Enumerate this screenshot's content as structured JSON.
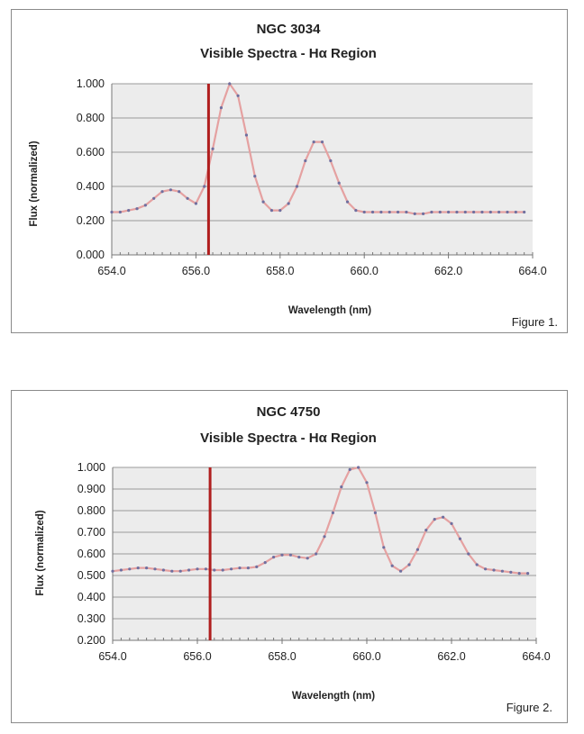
{
  "chart_data": [
    {
      "type": "line",
      "title": "NGC 3034",
      "subtitle": "Visible Spectra - Hα Region",
      "xlabel": "Wavelength (nm)",
      "ylabel": "Flux (normalized)",
      "figure_label": "Figure 1.",
      "xlim": [
        654.0,
        664.0
      ],
      "ylim": [
        0.0,
        1.0
      ],
      "xticks": [
        "654.0",
        "656.0",
        "658.0",
        "660.0",
        "662.0",
        "664.0"
      ],
      "yticks": [
        "0.000",
        "0.200",
        "0.400",
        "0.600",
        "0.800",
        "1.000"
      ],
      "marker_line_x": 656.3,
      "colors": {
        "line": "#e5a1a1",
        "marker": "#6f6f9f",
        "vline": "#b01e1e",
        "plot_bg": "#ececec",
        "grid": "#9a9a9a"
      },
      "series": [
        {
          "name": "NGC 3034",
          "x": [
            654.0,
            654.2,
            654.4,
            654.6,
            654.8,
            655.0,
            655.2,
            655.4,
            655.6,
            655.8,
            656.0,
            656.2,
            656.4,
            656.6,
            656.8,
            657.0,
            657.2,
            657.4,
            657.6,
            657.8,
            658.0,
            658.2,
            658.4,
            658.6,
            658.8,
            659.0,
            659.2,
            659.4,
            659.6,
            659.8,
            660.0,
            660.2,
            660.4,
            660.6,
            660.8,
            661.0,
            661.2,
            661.4,
            661.6,
            661.8,
            662.0,
            662.2,
            662.4,
            662.6,
            662.8,
            663.0,
            663.2,
            663.4,
            663.6,
            663.8
          ],
          "values": [
            0.25,
            0.25,
            0.26,
            0.27,
            0.29,
            0.33,
            0.37,
            0.38,
            0.37,
            0.33,
            0.3,
            0.4,
            0.62,
            0.86,
            1.0,
            0.93,
            0.7,
            0.46,
            0.31,
            0.26,
            0.26,
            0.3,
            0.4,
            0.55,
            0.66,
            0.66,
            0.55,
            0.42,
            0.31,
            0.26,
            0.25,
            0.25,
            0.25,
            0.25,
            0.25,
            0.25,
            0.24,
            0.24,
            0.25,
            0.25,
            0.25,
            0.25,
            0.25,
            0.25,
            0.25,
            0.25,
            0.25,
            0.25,
            0.25,
            0.25
          ]
        }
      ]
    },
    {
      "type": "line",
      "title": "NGC 4750",
      "subtitle": "Visible Spectra - Hα Region",
      "xlabel": "Wavelength (nm)",
      "ylabel": "Flux (normalized)",
      "figure_label": "Figure 2.",
      "xlim": [
        654.0,
        664.0
      ],
      "ylim": [
        0.2,
        1.0
      ],
      "xticks": [
        "654.0",
        "656.0",
        "658.0",
        "660.0",
        "662.0",
        "664.0"
      ],
      "yticks": [
        "0.200",
        "0.300",
        "0.400",
        "0.500",
        "0.600",
        "0.700",
        "0.800",
        "0.900",
        "1.000"
      ],
      "marker_line_x": 656.3,
      "colors": {
        "line": "#e5a1a1",
        "marker": "#6f6f9f",
        "vline": "#b01e1e",
        "plot_bg": "#ececec",
        "grid": "#9a9a9a"
      },
      "series": [
        {
          "name": "NGC 4750",
          "x": [
            654.0,
            654.2,
            654.4,
            654.6,
            654.8,
            655.0,
            655.2,
            655.4,
            655.6,
            655.8,
            656.0,
            656.2,
            656.4,
            656.6,
            656.8,
            657.0,
            657.2,
            657.4,
            657.6,
            657.8,
            658.0,
            658.2,
            658.4,
            658.6,
            658.8,
            659.0,
            659.2,
            659.4,
            659.6,
            659.8,
            660.0,
            660.2,
            660.4,
            660.6,
            660.8,
            661.0,
            661.2,
            661.4,
            661.6,
            661.8,
            662.0,
            662.2,
            662.4,
            662.6,
            662.8,
            663.0,
            663.2,
            663.4,
            663.6,
            663.8
          ],
          "values": [
            0.52,
            0.525,
            0.53,
            0.535,
            0.535,
            0.53,
            0.525,
            0.52,
            0.52,
            0.525,
            0.53,
            0.53,
            0.525,
            0.525,
            0.53,
            0.535,
            0.535,
            0.54,
            0.56,
            0.585,
            0.595,
            0.595,
            0.585,
            0.58,
            0.6,
            0.68,
            0.79,
            0.91,
            0.99,
            1.0,
            0.93,
            0.79,
            0.63,
            0.545,
            0.52,
            0.55,
            0.62,
            0.71,
            0.76,
            0.77,
            0.74,
            0.67,
            0.6,
            0.55,
            0.53,
            0.525,
            0.52,
            0.515,
            0.51,
            0.51
          ]
        }
      ]
    }
  ]
}
